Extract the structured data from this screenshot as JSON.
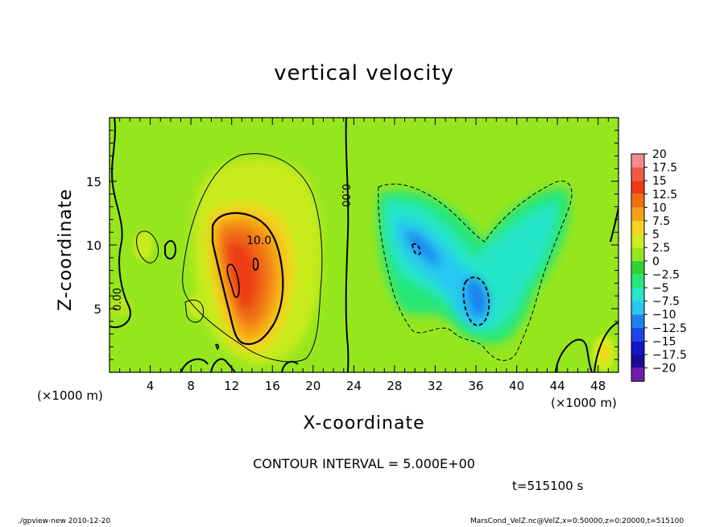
{
  "chart_data": {
    "type": "heatmap",
    "title": "vertical velocity",
    "xlabel": "X-coordinate",
    "ylabel": "Z-coordinate",
    "x_unit_label": "(×1000 m)",
    "xlim": [
      0,
      50
    ],
    "ylim": [
      0,
      20
    ],
    "x_ticks": [
      4,
      8,
      12,
      16,
      20,
      24,
      28,
      32,
      36,
      40,
      44,
      48
    ],
    "y_ticks": [
      5,
      10,
      15
    ],
    "colorbar": {
      "labels": [
        "20",
        "17.5",
        "15",
        "12.5",
        "10",
        "7.5",
        "5",
        "2.5",
        "0",
        "−2.5",
        "−5",
        "−7.5",
        "−10",
        "−12.5",
        "−15",
        "−17.5",
        "−20"
      ],
      "values": [
        20,
        17.5,
        15,
        12.5,
        10,
        7.5,
        5,
        2.5,
        0,
        -2.5,
        -5,
        -7.5,
        -10,
        -12.5,
        -15,
        -17.5,
        -20
      ],
      "colors": [
        "#f08c8c",
        "#f05a46",
        "#ee3c14",
        "#f06e14",
        "#f5a014",
        "#f5d21e",
        "#d2eb1e",
        "#96e61e",
        "#32d232",
        "#28e678",
        "#28e6c8",
        "#28c8f0",
        "#1e82f0",
        "#1e46e6",
        "#1414c8",
        "#1e0a96",
        "#6e1eaa"
      ]
    },
    "contour_labels": [
      "10.0",
      "0.00",
      "0.00"
    ],
    "contour_interval": 5.0,
    "time_s": 515100
  },
  "contour_interval_text": "CONTOUR INTERVAL = 5.000E+00",
  "time_text": "t=515100  s",
  "footer_left": "./gpview-new   2010-12-20",
  "footer_right": "MarsCond_VelZ.nc@VelZ,x=0:50000,z=0:20000,t=515100"
}
